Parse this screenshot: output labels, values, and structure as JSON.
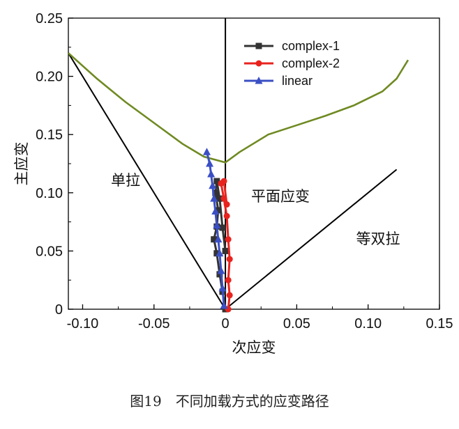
{
  "caption": "图19　不同加载方式的应变路径",
  "chart_data": {
    "type": "line",
    "xlabel": "次应变",
    "ylabel": "主应变",
    "xlim": [
      -0.11,
      0.15
    ],
    "ylim": [
      0,
      0.25
    ],
    "xticks": [
      -0.1,
      -0.05,
      0,
      0.05,
      0.1,
      0.15
    ],
    "xtick_labels": [
      "-0.10",
      "-0.05",
      "0",
      "0.05",
      "0.10",
      "0.15"
    ],
    "yticks": [
      0,
      0.05,
      0.1,
      0.15,
      0.2,
      0.25
    ],
    "ytick_labels": [
      "0",
      "0.05",
      "0.10",
      "0.15",
      "0.20",
      "0.25"
    ],
    "grid": false,
    "legend_position": "top-right",
    "legend_loc_note": "upper right, inside plot",
    "colors": {
      "complex_1": "#333333",
      "complex_2": "#e8231e",
      "linear": "#3b4fc4",
      "flc": "#6f8a22",
      "reference": "#000000"
    },
    "regions": [
      "单拉",
      "平面应变",
      "等双拉"
    ],
    "series": [
      {
        "name": "complex-1",
        "marker": "square",
        "x": [
          0,
          -0.002,
          -0.004,
          -0.006,
          -0.008,
          -0.006,
          -0.005,
          -0.007,
          -0.006,
          -0.004,
          -0.002,
          0
        ],
        "y": [
          0,
          0.015,
          0.03,
          0.048,
          0.06,
          0.071,
          0.085,
          0.1,
          0.11,
          0.095,
          0.07,
          0.05
        ]
      },
      {
        "name": "complex-2",
        "marker": "circle",
        "x": [
          0.002,
          0.003,
          0.002,
          0.003,
          0.002,
          0.001,
          -0.001,
          -0.003,
          -0.001,
          0.001
        ],
        "y": [
          0,
          0.012,
          0.025,
          0.043,
          0.06,
          0.08,
          0.095,
          0.108,
          0.11,
          0.09
        ]
      },
      {
        "name": "linear",
        "marker": "triangle",
        "x": [
          -0.001,
          -0.002,
          -0.003,
          -0.004,
          -0.005,
          -0.006,
          -0.007,
          -0.008,
          -0.009,
          -0.01,
          -0.011,
          -0.013
        ],
        "y": [
          0.003,
          0.018,
          0.033,
          0.048,
          0.06,
          0.072,
          0.084,
          0.095,
          0.106,
          0.116,
          0.125,
          0.135
        ]
      }
    ],
    "flc_curve": {
      "x": [
        -0.11,
        -0.09,
        -0.07,
        -0.05,
        -0.03,
        -0.015,
        0,
        0.01,
        0.03,
        0.05,
        0.07,
        0.09,
        0.11,
        0.12,
        0.128
      ],
      "y": [
        0.22,
        0.198,
        0.178,
        0.16,
        0.142,
        0.131,
        0.126,
        0.135,
        0.15,
        0.158,
        0.166,
        0.175,
        0.187,
        0.198,
        0.214
      ]
    },
    "reference_lines": [
      {
        "x": [
          -0.11,
          0
        ],
        "y": [
          0.22,
          0
        ]
      },
      {
        "x": [
          0,
          0.12
        ],
        "y": [
          0,
          0.12
        ]
      },
      {
        "x": [
          0,
          0
        ],
        "y": [
          0,
          0.25
        ]
      }
    ]
  }
}
